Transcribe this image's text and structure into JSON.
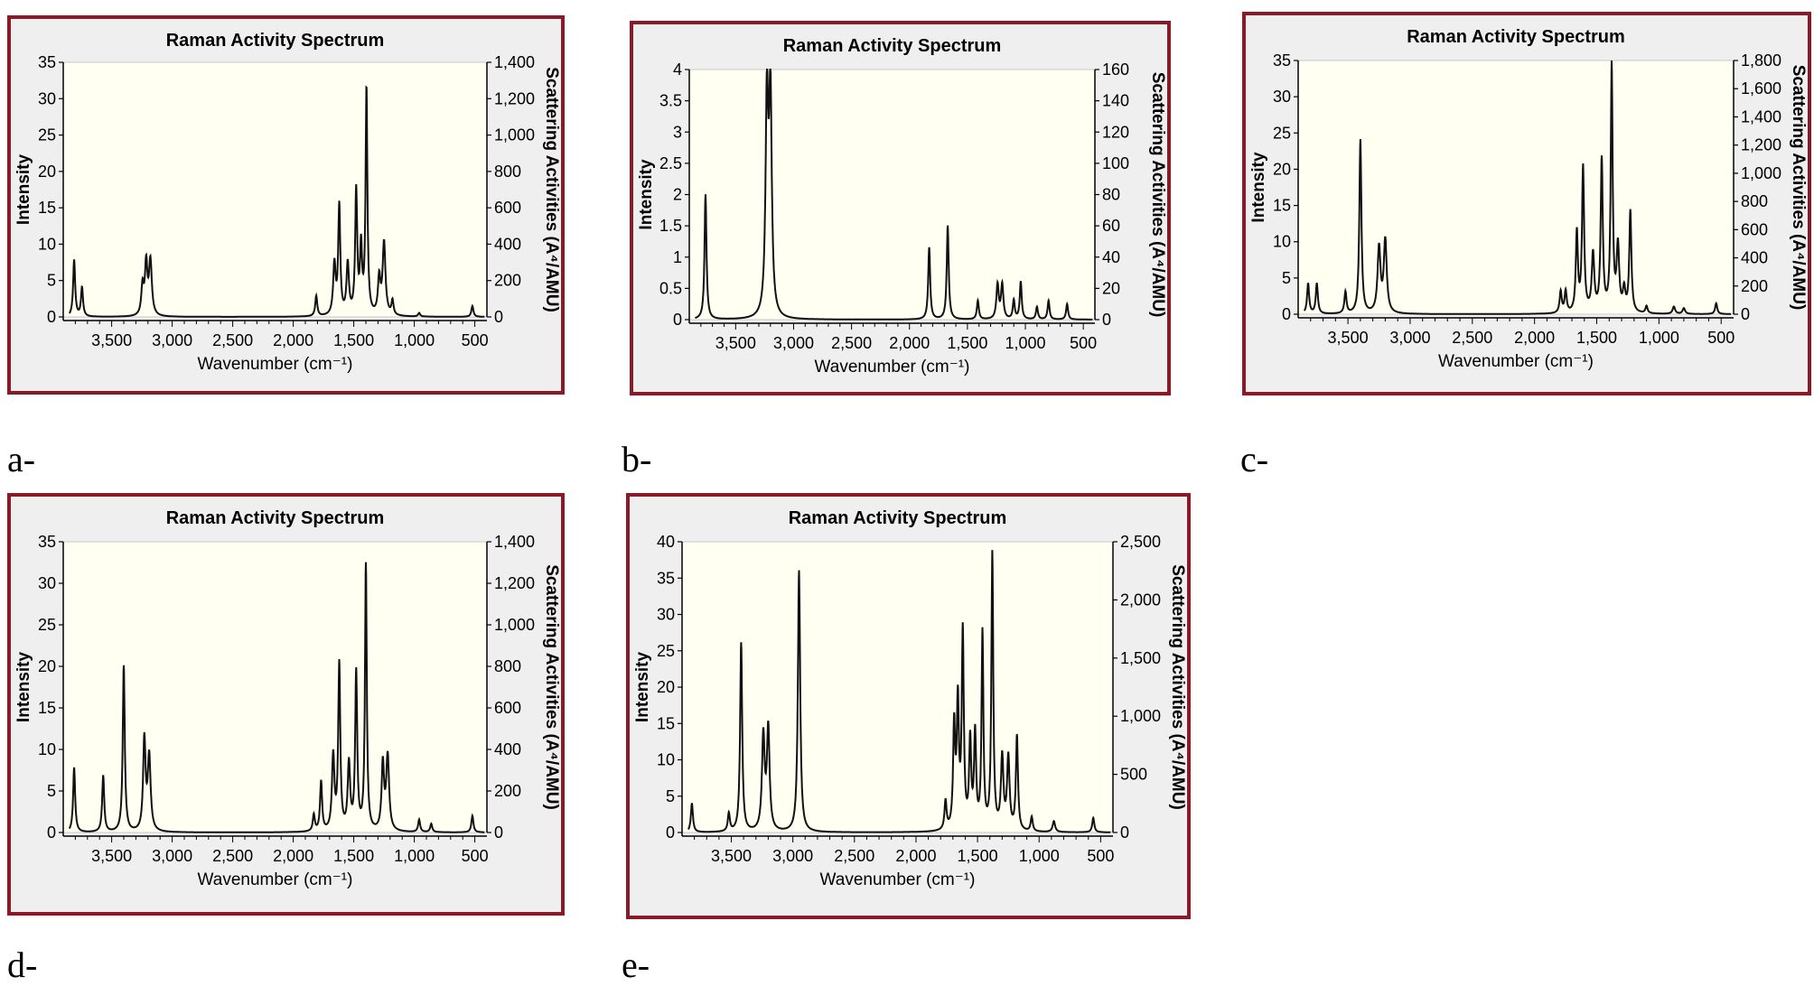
{
  "chart_data": [
    {
      "type": "line",
      "panel_label": "a-",
      "title": "Raman Activity Spectrum",
      "xlabel": "Wavenumber (cm⁻¹)",
      "ylabel": "Intensity",
      "y2label": "Scattering Activities (A⁴/AMU)",
      "xlim": [
        3900,
        400
      ],
      "x_reversed": true,
      "xticks": [
        "3,500",
        "3,000",
        "2,500",
        "2,000",
        "1,500",
        "1,000",
        "500"
      ],
      "ylim": [
        0,
        35
      ],
      "yticks": [
        "0",
        "5",
        "10",
        "15",
        "20",
        "25",
        "30",
        "35"
      ],
      "y2lim": [
        0,
        1400
      ],
      "y2ticks": [
        "0",
        "200",
        "400",
        "600",
        "800",
        "1,000",
        "1,200",
        "1,400"
      ],
      "grid": false,
      "series": [
        {
          "peaks": [
            [
              3810,
              7.8,
              10
            ],
            [
              3745,
              4,
              10
            ],
            [
              3245,
              4,
              12
            ],
            [
              3215,
              7,
              12
            ],
            [
              3180,
              7.5,
              14
            ],
            [
              1810,
              2.8,
              10
            ],
            [
              1660,
              7,
              12
            ],
            [
              1620,
              15,
              10
            ],
            [
              1550,
              7,
              12
            ],
            [
              1480,
              17,
              10
            ],
            [
              1440,
              9,
              10
            ],
            [
              1395,
              31,
              9
            ],
            [
              1290,
              5,
              12
            ],
            [
              1250,
              10,
              14
            ],
            [
              1180,
              2,
              10
            ],
            [
              960,
              0.5,
              10
            ],
            [
              520,
              1.5,
              10
            ]
          ]
        }
      ]
    },
    {
      "type": "line",
      "panel_label": "b-",
      "title": "Raman Activity Spectrum",
      "xlabel": "Wavenumber (cm⁻¹)",
      "ylabel": "Intensity",
      "y2label": "Scattering Activities (A⁴/AMU)",
      "xlim": [
        3900,
        400
      ],
      "x_reversed": true,
      "xticks": [
        "3,500",
        "3,000",
        "2,500",
        "2,000",
        "1,500",
        "1,000",
        "500"
      ],
      "ylim": [
        0,
        4
      ],
      "yticks": [
        "0",
        "0.5",
        "1",
        "1.5",
        "2",
        "2.5",
        "3",
        "3.5",
        "4"
      ],
      "y2lim": [
        0,
        160
      ],
      "y2ticks": [
        "0",
        "20",
        "40",
        "60",
        "80",
        "100",
        "120",
        "140",
        "160"
      ],
      "grid": false,
      "series": [
        {
          "peaks": [
            [
              3760,
              2,
              10
            ],
            [
              3230,
              3.45,
              14
            ],
            [
              3200,
              3.45,
              14
            ],
            [
              1830,
              1.15,
              10
            ],
            [
              1670,
              1.5,
              10
            ],
            [
              1410,
              0.3,
              10
            ],
            [
              1240,
              0.55,
              12
            ],
            [
              1200,
              0.55,
              12
            ],
            [
              1040,
              0.6,
              10
            ],
            [
              1100,
              0.3,
              10
            ],
            [
              800,
              0.3,
              10
            ],
            [
              640,
              0.25,
              10
            ],
            [
              900,
              0.2,
              10
            ]
          ]
        }
      ]
    },
    {
      "type": "line",
      "panel_label": "c-",
      "title": "Raman Activity Spectrum",
      "xlabel": "Wavenumber (cm⁻¹)",
      "ylabel": "Intensity",
      "y2label": "Scattering Activities (A⁴/AMU)",
      "xlim": [
        3900,
        400
      ],
      "x_reversed": true,
      "xticks": [
        "3,500",
        "3,000",
        "2,500",
        "2,000",
        "1,500",
        "1,000",
        "500"
      ],
      "ylim": [
        0,
        35
      ],
      "yticks": [
        "0",
        "5",
        "10",
        "15",
        "20",
        "25",
        "30",
        "35"
      ],
      "y2lim": [
        0,
        1800
      ],
      "y2ticks": [
        "0",
        "200",
        "400",
        "600",
        "800",
        "1,000",
        "1,200",
        "1,400",
        "1,600",
        "1,800"
      ],
      "grid": false,
      "series": [
        {
          "peaks": [
            [
              3820,
              4.2,
              10
            ],
            [
              3750,
              4.2,
              10
            ],
            [
              3520,
              3,
              10
            ],
            [
              3400,
              24,
              10
            ],
            [
              3250,
              9,
              14
            ],
            [
              3200,
              10,
              14
            ],
            [
              1790,
              3,
              10
            ],
            [
              1750,
              3,
              10
            ],
            [
              1660,
              11,
              10
            ],
            [
              1610,
              20,
              10
            ],
            [
              1530,
              8,
              12
            ],
            [
              1460,
              21,
              10
            ],
            [
              1380,
              34,
              9
            ],
            [
              1330,
              9,
              12
            ],
            [
              1280,
              3,
              12
            ],
            [
              1230,
              14,
              10
            ],
            [
              1100,
              1,
              10
            ],
            [
              880,
              1,
              12
            ],
            [
              800,
              0.8,
              12
            ],
            [
              540,
              1.5,
              10
            ]
          ]
        }
      ]
    },
    {
      "type": "line",
      "panel_label": "d-",
      "title": "Raman Activity Spectrum",
      "xlabel": "Wavenumber (cm⁻¹)",
      "ylabel": "Intensity",
      "y2label": "Scattering Activities (A⁴/AMU)",
      "xlim": [
        3900,
        400
      ],
      "x_reversed": true,
      "xticks": [
        "3,500",
        "3,000",
        "2,500",
        "2,000",
        "1,500",
        "1,000",
        "500"
      ],
      "ylim": [
        0,
        35
      ],
      "yticks": [
        "0",
        "5",
        "10",
        "15",
        "20",
        "25",
        "30",
        "35"
      ],
      "y2lim": [
        0,
        1400
      ],
      "y2ticks": [
        "0",
        "200",
        "400",
        "600",
        "800",
        "1,000",
        "1,200",
        "1,400"
      ],
      "grid": false,
      "series": [
        {
          "peaks": [
            [
              3810,
              7.8,
              10
            ],
            [
              3570,
              6.8,
              10
            ],
            [
              3400,
              20,
              10
            ],
            [
              3230,
              11,
              12
            ],
            [
              3190,
              9,
              14
            ],
            [
              1830,
              2,
              10
            ],
            [
              1770,
              6,
              10
            ],
            [
              1670,
              9,
              12
            ],
            [
              1620,
              20,
              10
            ],
            [
              1540,
              8,
              12
            ],
            [
              1480,
              19,
              10
            ],
            [
              1400,
              32,
              9
            ],
            [
              1260,
              8,
              12
            ],
            [
              1220,
              9,
              14
            ],
            [
              960,
              1.5,
              10
            ],
            [
              860,
              1,
              10
            ],
            [
              520,
              2,
              10
            ]
          ]
        }
      ]
    },
    {
      "type": "line",
      "panel_label": "e-",
      "title": "Raman Activity Spectrum",
      "xlabel": "Wavenumber (cm⁻¹)",
      "ylabel": "Intensity",
      "y2label": "Scattering Activities (A⁴/AMU)",
      "xlim": [
        3900,
        400
      ],
      "x_reversed": true,
      "xticks": [
        "3,500",
        "3,000",
        "2,500",
        "2,000",
        "1,500",
        "1,000",
        "500"
      ],
      "ylim": [
        0,
        40
      ],
      "yticks": [
        "0",
        "5",
        "10",
        "15",
        "20",
        "25",
        "30",
        "35",
        "40"
      ],
      "y2lim": [
        0,
        2500
      ],
      "y2ticks": [
        "0",
        "500",
        "1,000",
        "1,500",
        "2,000",
        "2,500"
      ],
      "grid": false,
      "series": [
        {
          "peaks": [
            [
              3820,
              4,
              10
            ],
            [
              3520,
              2.5,
              10
            ],
            [
              3420,
              26,
              10
            ],
            [
              3240,
              13,
              13
            ],
            [
              3200,
              14,
              13
            ],
            [
              2950,
              36,
              11
            ],
            [
              1760,
              4,
              10
            ],
            [
              1690,
              14,
              10
            ],
            [
              1660,
              17,
              10
            ],
            [
              1620,
              27,
              10
            ],
            [
              1560,
              12,
              10
            ],
            [
              1520,
              13,
              10
            ],
            [
              1460,
              27,
              9
            ],
            [
              1380,
              38,
              9
            ],
            [
              1300,
              10,
              12
            ],
            [
              1250,
              10,
              12
            ],
            [
              1180,
              13,
              10
            ],
            [
              1060,
              2,
              10
            ],
            [
              880,
              1.5,
              12
            ],
            [
              560,
              2,
              10
            ]
          ]
        }
      ]
    }
  ]
}
